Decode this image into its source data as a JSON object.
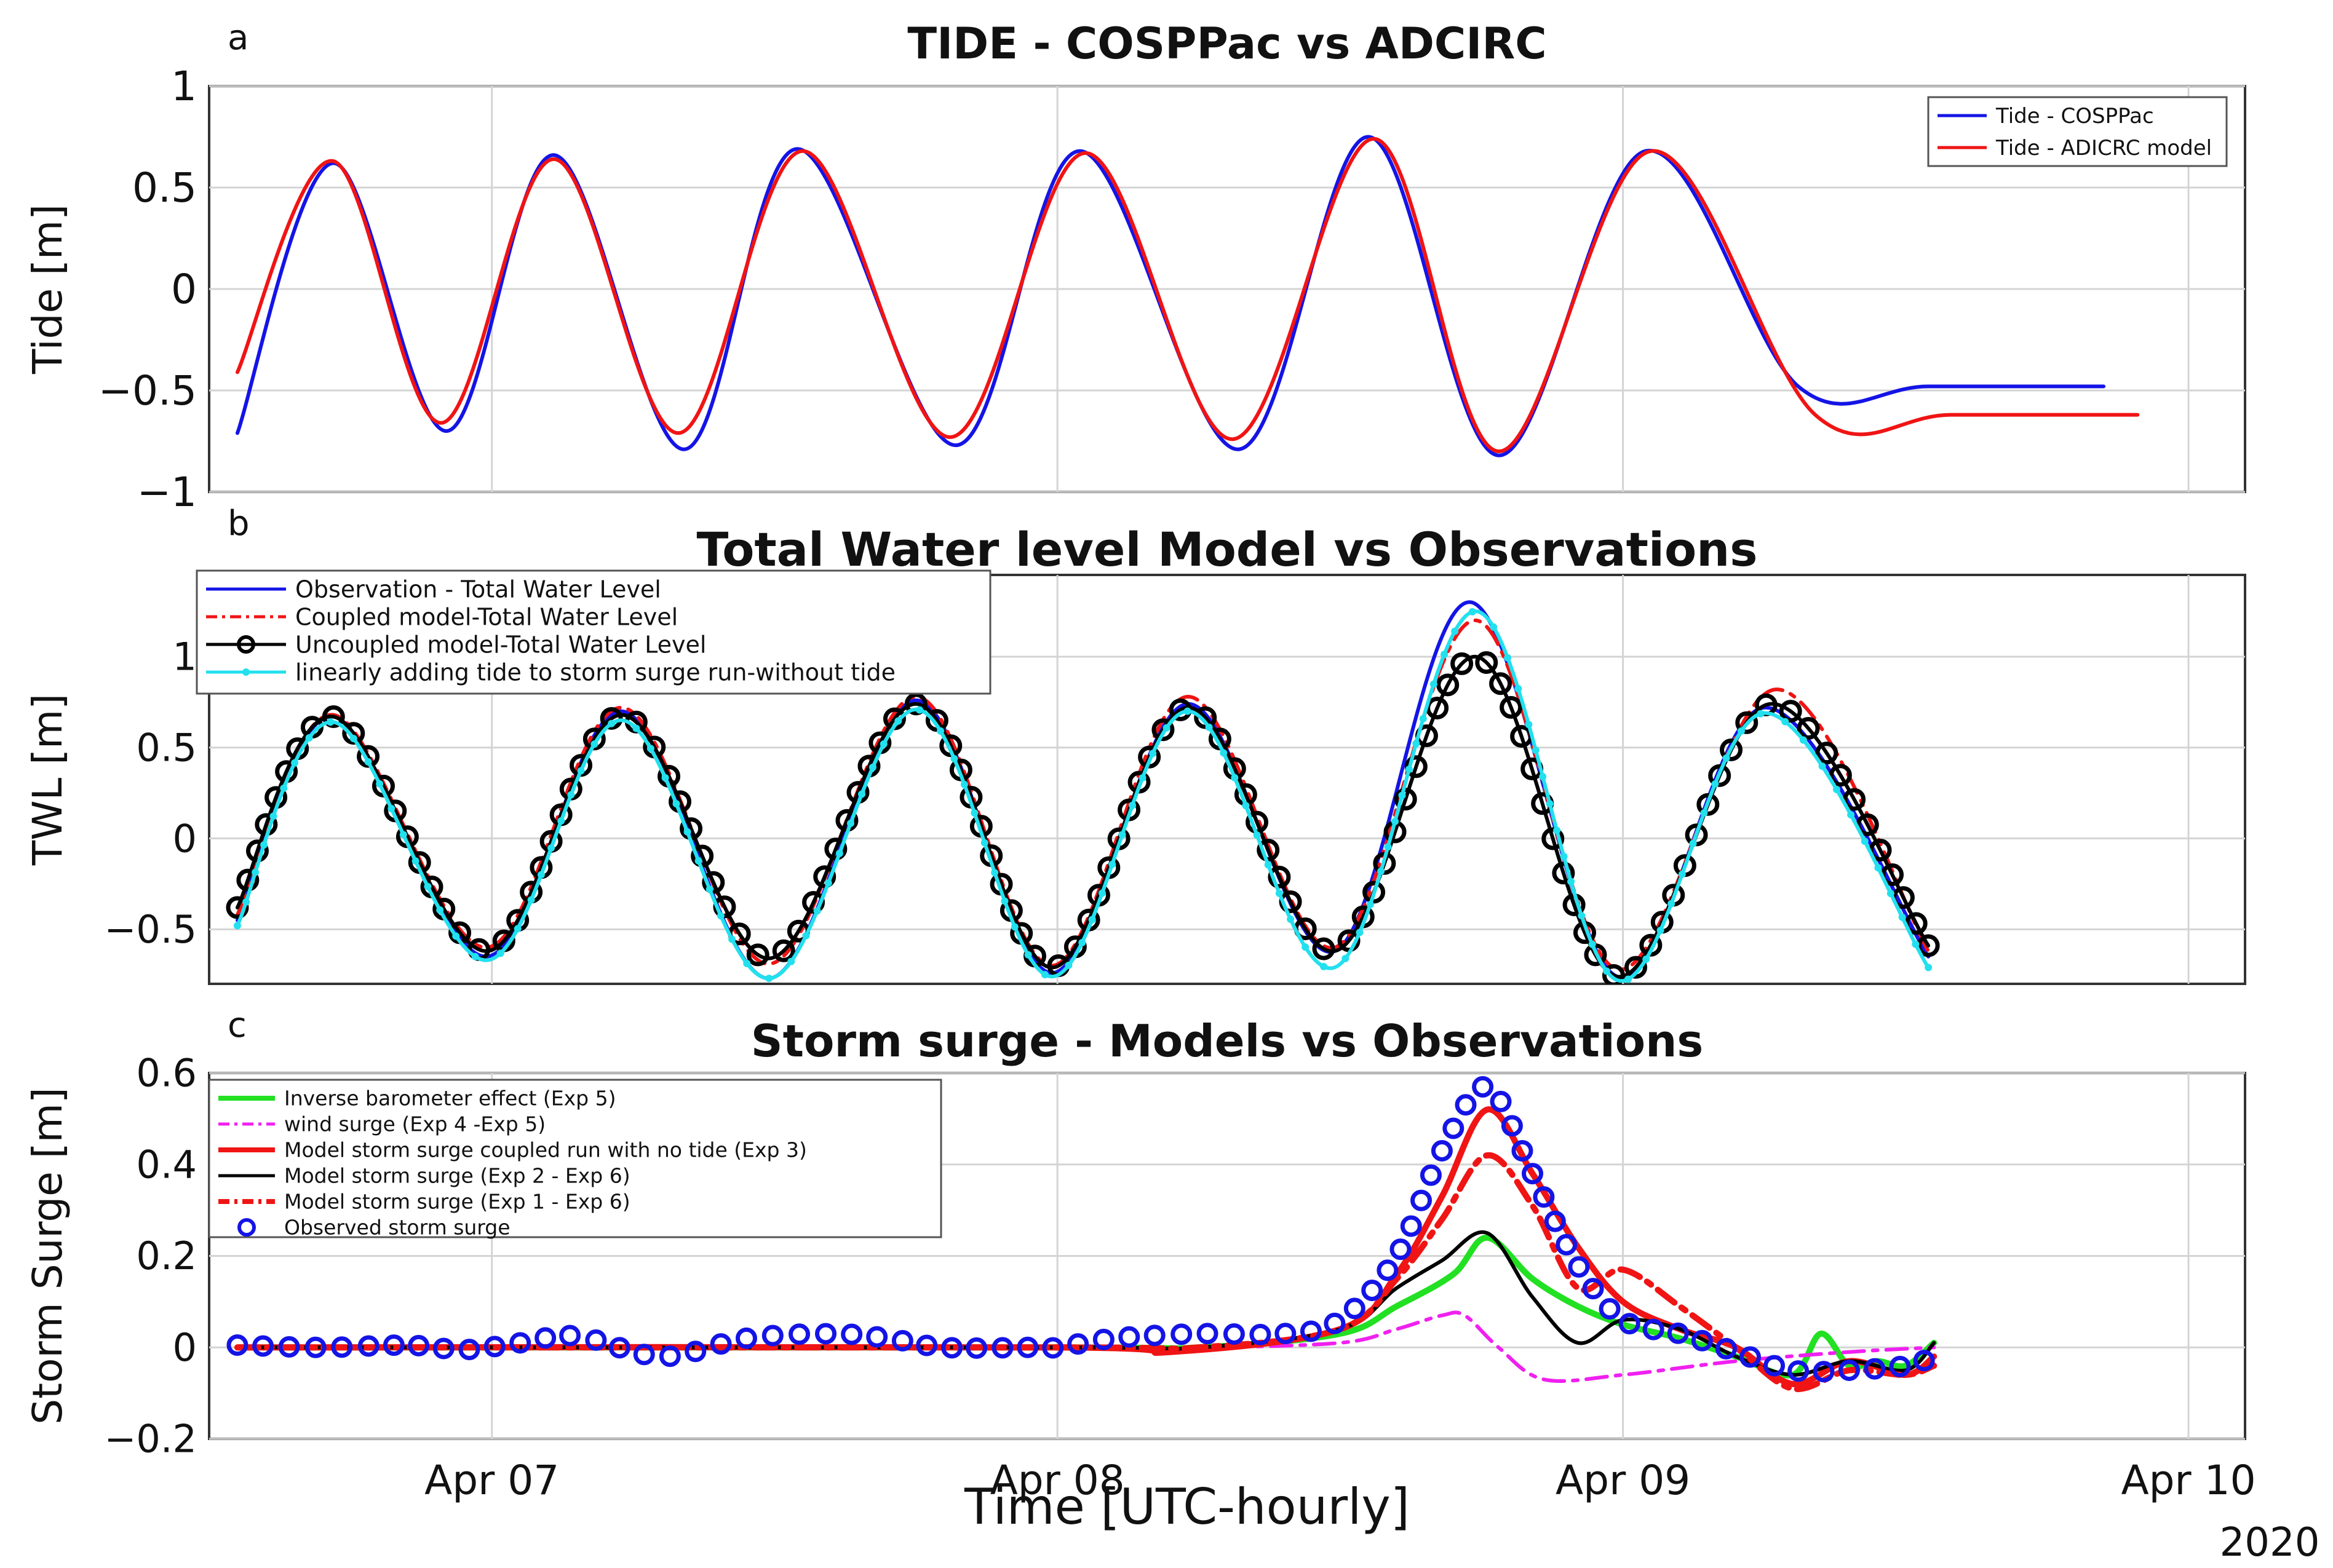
{
  "figure": {
    "year_label": "2020",
    "x_axis_label": "Time [UTC-hourly]"
  },
  "colors": {
    "blue": "#1414e6",
    "red": "#f01414",
    "black": "#000000",
    "cyan": "#22e0ee",
    "green": "#22e022",
    "magenta": "#f020f0"
  },
  "chart_data": [
    {
      "type": "line",
      "panel": "a",
      "title": "TIDE - COSPPac vs ADCIRC",
      "ylabel": "Tide [m]",
      "xlim": [
        0,
        3.6
      ],
      "ylim": [
        -1,
        1
      ],
      "yticks": [
        -1,
        -0.5,
        0,
        0.5,
        1
      ],
      "ytick_labels": [
        "−1",
        "−0.5",
        "0",
        "0.5",
        "1"
      ],
      "x_tick_positions": [
        0.5,
        1.5,
        2.5,
        3.5
      ],
      "legend_position": "top-right",
      "series": [
        {
          "name": "Tide - COSPPac",
          "color": "blue",
          "style": "solid",
          "x": [
            0.05,
            0.22,
            0.42,
            0.61,
            0.84,
            1.04,
            1.32,
            1.54,
            1.82,
            2.05,
            2.28,
            2.54,
            2.81,
            3.04,
            3.35
          ],
          "y": [
            -0.71,
            0.62,
            -0.7,
            0.66,
            -0.79,
            0.69,
            -0.77,
            0.68,
            -0.79,
            0.75,
            -0.82,
            0.68,
            -0.48,
            -0.48,
            -0.48
          ]
        },
        {
          "name": "Tide - ADICRC model",
          "color": "red",
          "style": "solid",
          "x": [
            0.05,
            0.22,
            0.41,
            0.61,
            0.83,
            1.05,
            1.31,
            1.55,
            1.81,
            2.06,
            2.28,
            2.55,
            2.84,
            3.08,
            3.41
          ],
          "y": [
            -0.41,
            0.63,
            -0.66,
            0.64,
            -0.71,
            0.68,
            -0.73,
            0.67,
            -0.74,
            0.74,
            -0.8,
            0.68,
            -0.62,
            -0.62,
            -0.62
          ]
        }
      ]
    },
    {
      "type": "line",
      "panel": "b",
      "title": "Total Water level Model vs Observations",
      "ylabel": "TWL [m]",
      "xlim": [
        0,
        3.6
      ],
      "ylim": [
        -0.8,
        1.45
      ],
      "yticks": [
        -0.5,
        0,
        0.5,
        1
      ],
      "ytick_labels": [
        "−0.5",
        "0",
        "0.5",
        "1"
      ],
      "x_tick_positions": [
        0.5,
        1.5,
        2.5,
        3.5
      ],
      "legend_position": "top-left",
      "series": [
        {
          "name": "Observation - Total Water Level",
          "color": "blue",
          "style": "solid",
          "x": [
            0.05,
            0.22,
            0.49,
            0.73,
            0.99,
            1.25,
            1.49,
            1.73,
            1.99,
            2.23,
            2.49,
            2.75,
            3.04
          ],
          "y": [
            -0.45,
            0.67,
            -0.65,
            0.7,
            -0.77,
            0.76,
            -0.74,
            0.74,
            -0.62,
            1.3,
            -0.76,
            0.72,
            -0.65
          ]
        },
        {
          "name": "Coupled model-Total Water Level",
          "color": "red",
          "style": "dashdot",
          "x": [
            0.05,
            0.22,
            0.49,
            0.73,
            0.99,
            1.25,
            1.49,
            1.73,
            1.99,
            2.24,
            2.49,
            2.77,
            3.04
          ],
          "y": [
            -0.42,
            0.68,
            -0.6,
            0.72,
            -0.69,
            0.78,
            -0.7,
            0.78,
            -0.6,
            1.2,
            -0.72,
            0.82,
            -0.62
          ]
        },
        {
          "name": "Uncoupled model-Total Water Level",
          "color": "black",
          "style": "solid-circle",
          "x": [
            0.05,
            0.22,
            0.49,
            0.73,
            0.99,
            1.25,
            1.49,
            1.73,
            1.99,
            2.24,
            2.49,
            2.76,
            3.04
          ],
          "y": [
            -0.38,
            0.67,
            -0.62,
            0.68,
            -0.66,
            0.74,
            -0.71,
            0.72,
            -0.62,
            1.0,
            -0.76,
            0.74,
            -0.59
          ]
        },
        {
          "name": "linearly adding tide to storm surge run-without tide",
          "color": "cyan",
          "style": "solid-dot",
          "x": [
            0.05,
            0.22,
            0.49,
            0.73,
            0.99,
            1.25,
            1.49,
            1.73,
            1.99,
            2.24,
            2.49,
            2.75,
            3.04
          ],
          "y": [
            -0.48,
            0.64,
            -0.67,
            0.65,
            -0.77,
            0.71,
            -0.76,
            0.7,
            -0.71,
            1.25,
            -0.78,
            0.69,
            -0.71
          ]
        }
      ]
    },
    {
      "type": "line",
      "panel": "c",
      "title": "Storm surge - Models vs Observations",
      "ylabel": "Storm Surge [m]",
      "xlim": [
        0,
        3.6
      ],
      "ylim": [
        -0.2,
        0.6
      ],
      "yticks": [
        -0.2,
        0,
        0.2,
        0.4,
        0.6
      ],
      "ytick_labels": [
        "−0.2",
        "0",
        "0.2",
        "0.4",
        "0.6"
      ],
      "x_tick_positions": [
        0.5,
        1.5,
        2.5,
        3.5
      ],
      "x_tick_labels": [
        "Apr 07",
        "Apr 08",
        "Apr 09",
        "Apr 10"
      ],
      "legend_position": "top-left",
      "series": [
        {
          "name": "Inverse barometer effect (Exp 5)",
          "color": "green",
          "style": "solid-thick",
          "x": [
            0.05,
            1.5,
            1.75,
            2.0,
            2.1,
            2.2,
            2.26,
            2.34,
            2.42,
            2.5,
            2.6,
            2.7,
            2.8,
            2.85,
            2.9,
            2.95,
            3.0,
            3.05
          ],
          "y": [
            0.0,
            0.0,
            0.0,
            0.03,
            0.09,
            0.16,
            0.24,
            0.15,
            0.09,
            0.05,
            0.02,
            -0.02,
            -0.06,
            0.03,
            -0.04,
            -0.03,
            -0.04,
            0.01
          ]
        },
        {
          "name": "wind surge (Exp 4 -Exp 5)",
          "color": "magenta",
          "style": "dashdot",
          "x": [
            0.05,
            1.5,
            1.75,
            2.0,
            2.1,
            2.18,
            2.22,
            2.28,
            2.36,
            2.5,
            2.7,
            2.9,
            3.05
          ],
          "y": [
            0.0,
            0.0,
            0.0,
            0.01,
            0.04,
            0.07,
            0.07,
            0.0,
            -0.07,
            -0.06,
            -0.03,
            -0.01,
            0.0
          ]
        },
        {
          "name": "Model storm surge coupled run with no tide (Exp 3)",
          "color": "red",
          "style": "solid-thick",
          "x": [
            0.05,
            1.5,
            1.7,
            2.0,
            2.1,
            2.18,
            2.26,
            2.34,
            2.42,
            2.5,
            2.6,
            2.7,
            2.8,
            2.9,
            3.0,
            3.05
          ],
          "y": [
            0.0,
            0.0,
            -0.01,
            0.04,
            0.16,
            0.33,
            0.52,
            0.38,
            0.22,
            0.1,
            0.04,
            0.0,
            -0.08,
            -0.03,
            -0.06,
            -0.02
          ]
        },
        {
          "name": "Model storm surge (Exp 2 - Exp 6)",
          "color": "black",
          "style": "solid",
          "x": [
            0.05,
            1.5,
            1.75,
            2.0,
            2.1,
            2.18,
            2.26,
            2.34,
            2.42,
            2.5,
            2.6,
            2.7,
            2.8,
            2.9,
            3.0,
            3.05
          ],
          "y": [
            0.0,
            0.0,
            0.0,
            0.04,
            0.13,
            0.19,
            0.25,
            0.11,
            0.01,
            0.06,
            0.04,
            -0.02,
            -0.06,
            -0.03,
            -0.05,
            0.01
          ]
        },
        {
          "name": "Model storm surge (Exp 1 - Exp 6)",
          "color": "red",
          "style": "dashdot-thick",
          "x": [
            0.05,
            1.5,
            1.75,
            2.0,
            2.1,
            2.18,
            2.26,
            2.34,
            2.42,
            2.5,
            2.6,
            2.7,
            2.8,
            2.9,
            3.0,
            3.05
          ],
          "y": [
            0.0,
            0.0,
            0.0,
            0.04,
            0.15,
            0.28,
            0.42,
            0.31,
            0.13,
            0.17,
            0.09,
            0.0,
            -0.09,
            -0.05,
            -0.06,
            -0.04
          ]
        },
        {
          "name": "Observed storm surge",
          "color": "blue",
          "style": "circles",
          "x": [
            0.05,
            0.2,
            0.35,
            0.45,
            0.55,
            0.65,
            0.8,
            0.95,
            1.1,
            1.2,
            1.3,
            1.45,
            1.5,
            1.6,
            1.75,
            1.9,
            2.0,
            2.1,
            2.18,
            2.26,
            2.34,
            2.42,
            2.5,
            2.6,
            2.7,
            2.8,
            2.9,
            3.0,
            3.05
          ],
          "y": [
            0.005,
            0.0,
            0.005,
            -0.005,
            0.01,
            0.025,
            -0.02,
            0.02,
            0.03,
            0.02,
            0.0,
            0.0,
            0.0,
            0.02,
            0.03,
            0.03,
            0.06,
            0.2,
            0.43,
            0.57,
            0.38,
            0.18,
            0.06,
            0.03,
            -0.01,
            -0.05,
            -0.05,
            -0.04,
            -0.02
          ]
        }
      ]
    }
  ]
}
